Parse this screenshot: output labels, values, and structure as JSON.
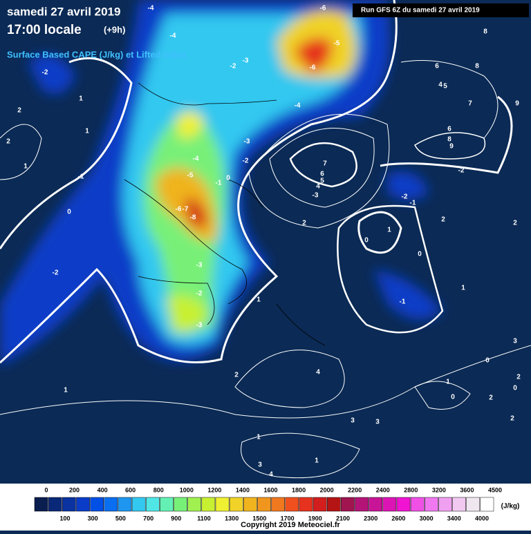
{
  "header": {
    "date": "samedi 27 avril 2019",
    "time": "17:00 locale",
    "offset": "(+9h)",
    "product": "Surface Based CAPE (J/kg) et Lifted Index",
    "run": "Run GFS 6Z du samedi 27 avril 2019"
  },
  "contour_labels": [
    "-6",
    "-4",
    "-4",
    "-5",
    "-6",
    "-2",
    "-2",
    "-3",
    "-4",
    "-3",
    "-2",
    "-4",
    "-5",
    "-1",
    "0",
    "-6",
    "-7",
    "-8",
    "-3",
    "-2",
    "-3",
    "-2",
    "0",
    "1",
    "1",
    "2",
    "1",
    "-1",
    "2",
    "8",
    "8",
    "6",
    "4",
    "5",
    "7",
    "9",
    "6",
    "8",
    "9",
    "7",
    "6",
    "5",
    "4",
    "-3",
    "-2",
    "-2",
    "-1",
    "2",
    "0",
    "1",
    "0",
    "2",
    "2",
    "1",
    "-1",
    "1",
    "2",
    "4",
    "1",
    "3",
    "0",
    "2",
    "1",
    "0",
    "0",
    "2",
    "2",
    "3",
    "3",
    "1",
    "1",
    "3",
    "4"
  ],
  "colorbar": {
    "top_labels": [
      0,
      200,
      400,
      600,
      800,
      1000,
      1200,
      1400,
      1600,
      1800,
      2000,
      2200,
      2400,
      2800,
      3200,
      3600,
      4500
    ],
    "bottom_labels": [
      100,
      300,
      500,
      700,
      900,
      1100,
      1300,
      1500,
      1700,
      1900,
      2100,
      2300,
      2600,
      3000,
      3400,
      4000
    ],
    "unit": "(J/kg)",
    "colors": [
      "#0a1e50",
      "#0a2878",
      "#0a32a0",
      "#0a3cc8",
      "#0050e6",
      "#0a6ef0",
      "#1e96f0",
      "#32c8f0",
      "#50e6e6",
      "#64f0b4",
      "#78f078",
      "#a0f050",
      "#c8f032",
      "#f0f032",
      "#f0d228",
      "#f0b41e",
      "#f0961e",
      "#f0781e",
      "#f0501e",
      "#e6321e",
      "#d21e1e",
      "#b41414",
      "#a01450",
      "#b41478",
      "#c81496",
      "#dc14b4",
      "#f014d2",
      "#f050e6",
      "#f078f0",
      "#f0a0f0",
      "#f0c8f0",
      "#f0e6f0",
      "#ffffff"
    ]
  },
  "copyright": "Copyright 2019 Meteociel.fr"
}
